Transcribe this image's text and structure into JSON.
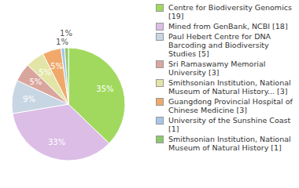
{
  "chart_data": {
    "type": "pie",
    "categories": [
      "Centre for Biodiversity Genomics [19]",
      "Mined from GenBank, NCBI [18]",
      "Paul Hebert Centre for DNA Barcoding and Biodiversity Studies [5]",
      "Sri Ramaswamy Memorial University [3]",
      "Smithsonian Institution, National Museum of Natural History... [3]",
      "Guangdong Provincial Hospital of Chinese Medicine [3]",
      "University of the Sunshine Coast [1]",
      "Smithsonian Institution, National Museum of Natural History [1]"
    ],
    "values": [
      35,
      33,
      9,
      5,
      5,
      5,
      1,
      1
    ],
    "value_labels": [
      "35%",
      "33%",
      "9%",
      "5%",
      "5%",
      "5%",
      "1%",
      "1%"
    ],
    "colors": [
      "#a1d95e",
      "#dcbde6",
      "#c8d6e3",
      "#d9a69e",
      "#e2e5a5",
      "#f0a96a",
      "#a7c5e8",
      "#8fc96b"
    ],
    "data_labels": true,
    "legend": "right"
  }
}
